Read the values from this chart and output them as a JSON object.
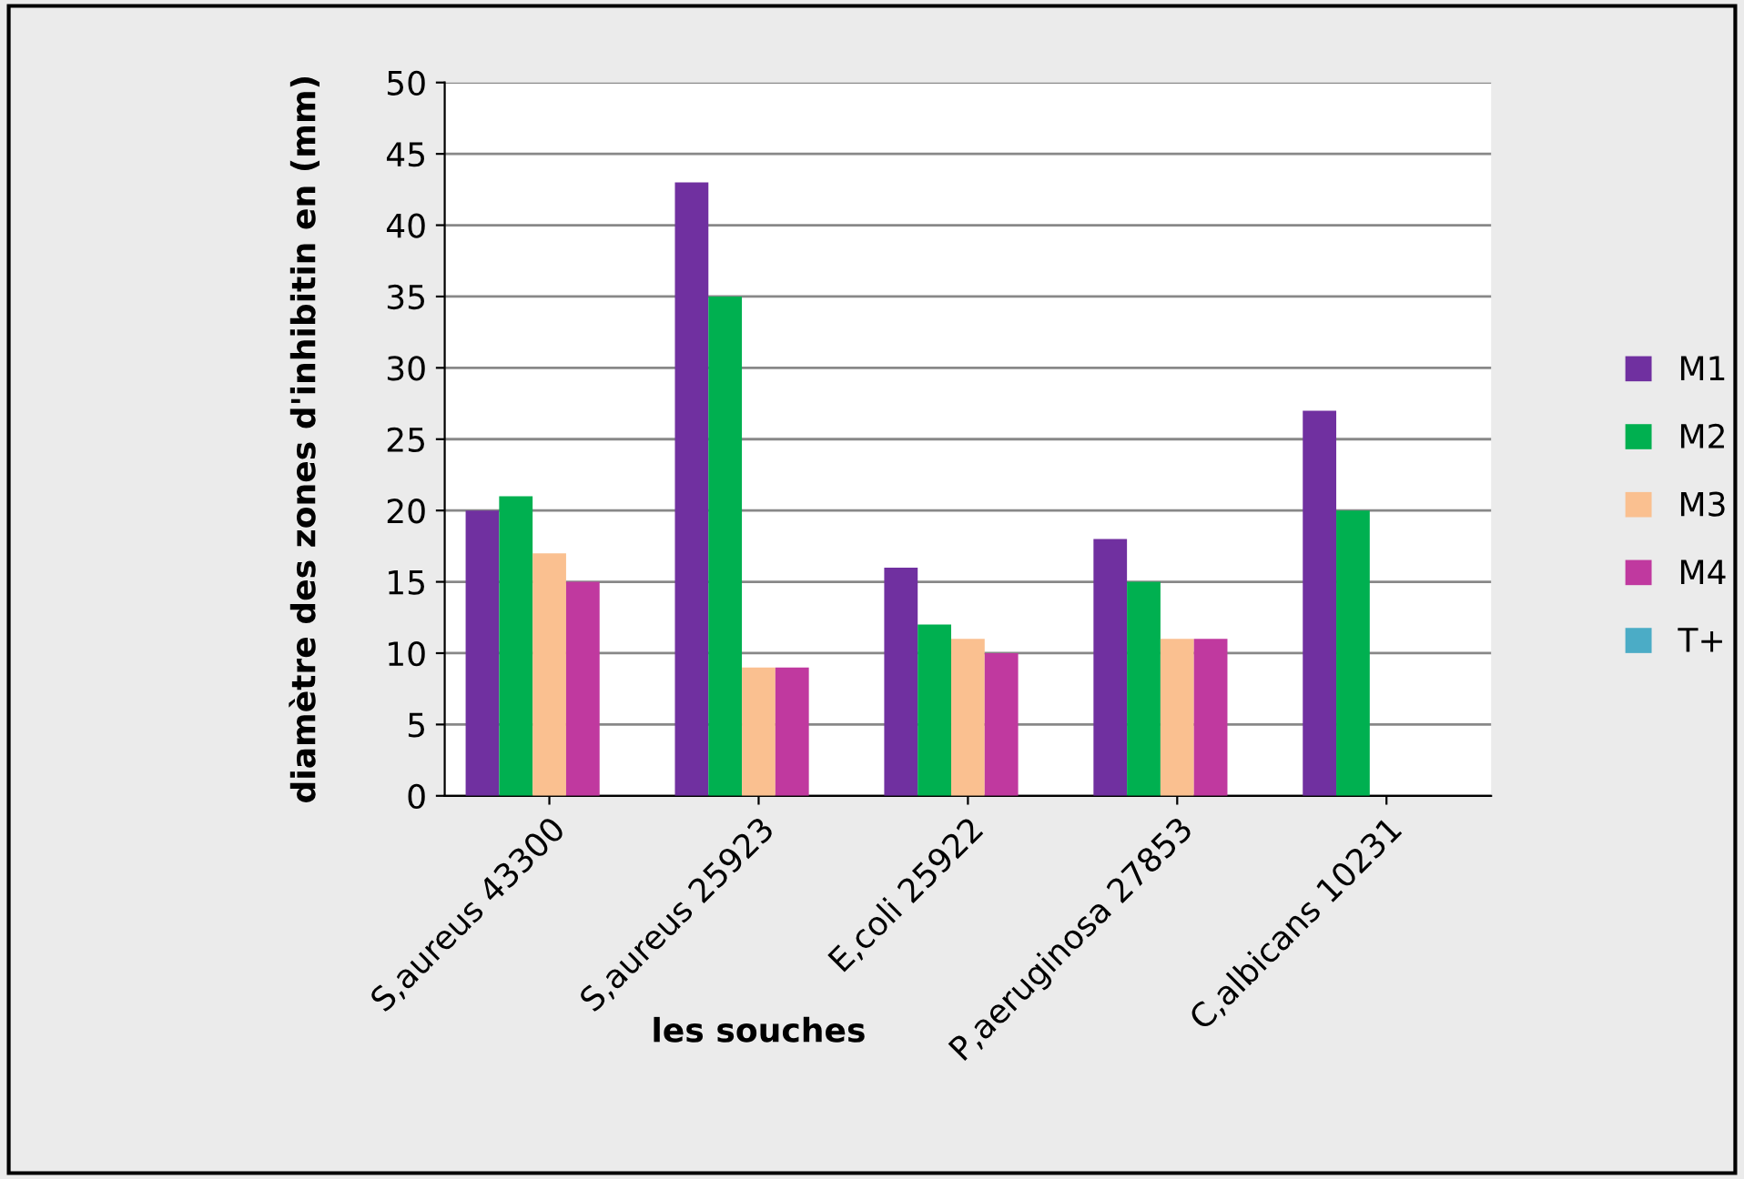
{
  "chart_data": {
    "type": "bar",
    "xlabel": "les souches",
    "ylabel": "diamètre des zones d'inhibitin en (mm)",
    "categories": [
      "S,aureus 43300",
      "S,aureus 25923",
      "E,coli 25922",
      "P,aeruginosa 27853",
      "C,albicans 10231"
    ],
    "series": [
      {
        "name": "M1",
        "color": "#7030a0",
        "values": [
          20,
          43,
          16,
          18,
          27
        ]
      },
      {
        "name": "M2",
        "color": "#00b050",
        "values": [
          21,
          35,
          12,
          15,
          20
        ]
      },
      {
        "name": "M3",
        "color": "#fac090",
        "values": [
          17,
          9,
          11,
          11,
          null
        ]
      },
      {
        "name": "M4",
        "color": "#c0399f",
        "values": [
          15,
          9,
          10,
          11,
          null
        ]
      },
      {
        "name": "T+",
        "color": "#4bacc6",
        "values": [
          null,
          null,
          null,
          null,
          null
        ]
      }
    ],
    "ylim": [
      0,
      50
    ],
    "yticks": [
      0,
      5,
      10,
      15,
      20,
      25,
      30,
      35,
      40,
      45,
      50
    ],
    "grid": "y",
    "legend": "right"
  }
}
